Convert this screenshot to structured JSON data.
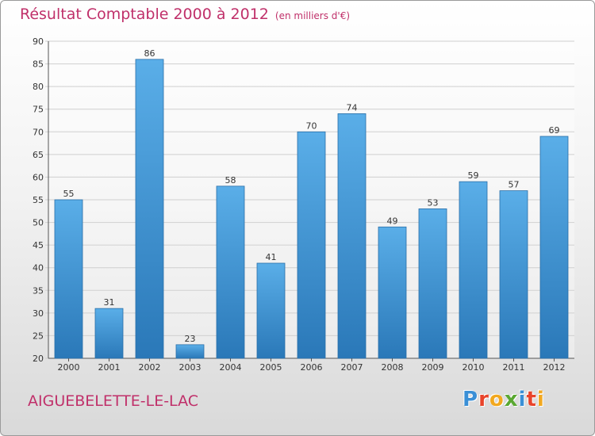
{
  "chart_data": {
    "type": "bar",
    "title": "Résultat Comptable 2000 à 2012",
    "subtitle": "(en milliers d'€)",
    "categories": [
      "2000",
      "2001",
      "2002",
      "2003",
      "2004",
      "2005",
      "2006",
      "2007",
      "2008",
      "2009",
      "2010",
      "2011",
      "2012"
    ],
    "values": [
      55,
      31,
      86,
      23,
      58,
      41,
      70,
      74,
      49,
      53,
      59,
      57,
      69
    ],
    "ylim": [
      20,
      90
    ],
    "yticks": [
      20,
      25,
      30,
      35,
      40,
      45,
      50,
      55,
      60,
      65,
      70,
      75,
      80,
      85,
      90
    ],
    "grid": true,
    "xlabel": "",
    "ylabel": ""
  },
  "footer": {
    "commune": "AIGUEBELETTE-LE-LAC",
    "logo_letters": [
      "P",
      "r",
      "o",
      "x",
      "i",
      "t",
      "i"
    ],
    "logo_colors": [
      "#3a8fd6",
      "#e8442b",
      "#f2a81f",
      "#5aa832",
      "#3a8fd6",
      "#e8442b",
      "#f2a81f"
    ]
  },
  "colors": {
    "title": "#c0306a",
    "bar_top": "#5aaee8",
    "bar_bottom": "#2a78b8",
    "grid": "#d0d0d0",
    "axis": "#555555"
  }
}
